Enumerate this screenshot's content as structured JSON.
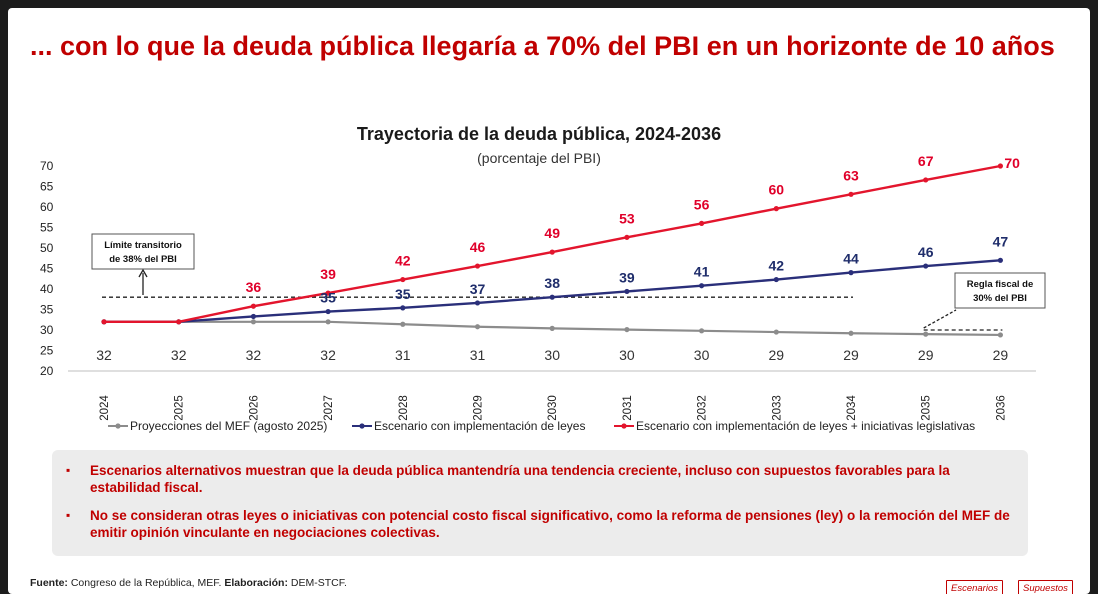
{
  "slide": {
    "title": "... con lo que la deuda pública llegaría a 70% del PBI en un horizonte de 10 años",
    "notes": [
      "Escenarios alternativos muestran que la deuda pública mantendría una tendencia creciente, incluso con supuestos favorables para la estabilidad fiscal.",
      "No se consideran otras leyes o iniciativas con potencial costo fiscal significativo, como la reforma de pensiones (ley) o la remoción del MEF de emitir opinión vinculante en negociaciones colectivas."
    ],
    "bullet_glyph": "▪",
    "source_label": "Fuente:",
    "source_text": " Congreso de la República, MEF. ",
    "elaboration_label": "Elaboración:",
    "elaboration_text": " DEM-STCF.",
    "nav": {
      "escenarios": "Escenarios",
      "supuestos": "Supuestos"
    }
  },
  "chart_data": {
    "type": "line",
    "title": "Trayectoria de la deuda pública, 2024-2036",
    "subtitle": "(porcentaje del PBI)",
    "categories": [
      "2024",
      "2025",
      "2026",
      "2027",
      "2028",
      "2029",
      "2030",
      "2031",
      "2032",
      "2033",
      "2034",
      "2035",
      "2036"
    ],
    "ylim": [
      20,
      70
    ],
    "yticks": [
      20,
      25,
      30,
      35,
      40,
      45,
      50,
      55,
      60,
      65,
      70
    ],
    "series": [
      {
        "name": "Proyecciones del MEF (agosto 2025)",
        "color": "#8c8c8c",
        "values": [
          32,
          32,
          32,
          32,
          31.4,
          30.8,
          30.4,
          30.1,
          29.8,
          29.5,
          29.2,
          29.0,
          28.8
        ],
        "labels": [
          "32",
          "32",
          "32",
          "32",
          "31",
          "31",
          "30",
          "30",
          "30",
          "29",
          "29",
          "29",
          "29"
        ]
      },
      {
        "name": "Escenario con implementación de leyes",
        "color": "#2a2f7a",
        "values": [
          32,
          32,
          33.3,
          34.5,
          35.4,
          36.6,
          38.0,
          39.4,
          40.8,
          42.3,
          44.0,
          45.6,
          47.0
        ],
        "labels": [
          "",
          "",
          "",
          "35",
          "35",
          "37",
          "38",
          "39",
          "41",
          "42",
          "44",
          "46",
          "47"
        ]
      },
      {
        "name": "Escenario con implementación de leyes + iniciativas legislativas",
        "color": "#e3152d",
        "values": [
          32,
          32,
          35.8,
          39.0,
          42.3,
          45.6,
          49.0,
          52.6,
          56.0,
          59.6,
          63.1,
          66.6,
          70.0
        ],
        "labels": [
          "",
          "",
          "36",
          "39",
          "42",
          "46",
          "49",
          "53",
          "56",
          "60",
          "63",
          "67",
          "70"
        ]
      }
    ],
    "annotations": {
      "limite": {
        "line1": "Límite transitorio",
        "line2": "de 38% del PBI",
        "value": 38,
        "from": "2024",
        "to": "2034"
      },
      "regla": {
        "line1": "Regla fiscal de",
        "line2": "30% del PBI",
        "value": 30,
        "from": "2035",
        "to": "2036"
      }
    }
  }
}
